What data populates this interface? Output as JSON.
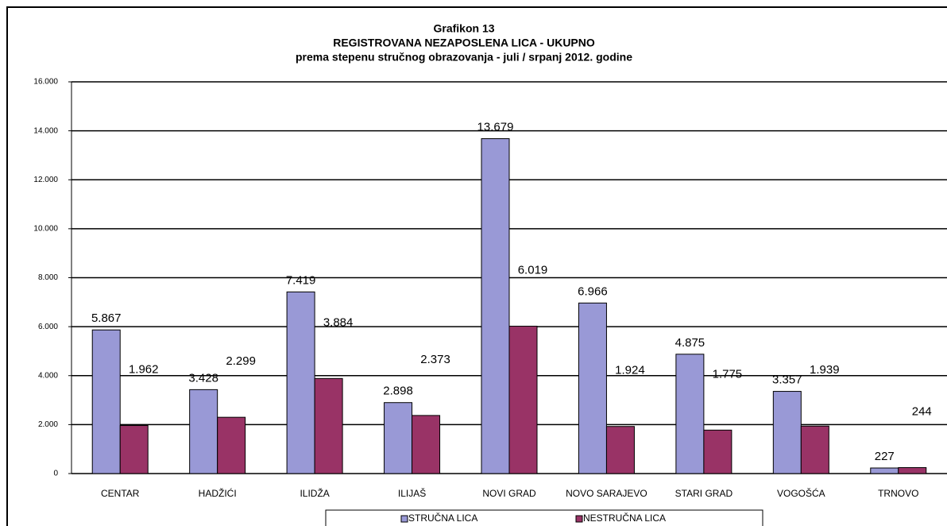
{
  "chart_data": {
    "type": "bar",
    "title": [
      "Grafikon 13",
      "REGISTROVANA NEZAPOSLENA LICA - UKUPNO",
      "prema stepenu stručnog obrazovanja - juli / srpanj  2012. godine"
    ],
    "categories": [
      "CENTAR",
      "HADŽIĆI",
      "ILIDŽA",
      "ILIJAŠ",
      "NOVI GRAD",
      "NOVO SARAJEVO",
      "STARI GRAD",
      "VOGOŠĆA",
      "TRNOVO"
    ],
    "series": [
      {
        "name": "STRUČNA LICA",
        "color": "#9999d6",
        "values": [
          5867,
          3428,
          7419,
          2898,
          13679,
          6966,
          4875,
          3357,
          227
        ],
        "value_labels": [
          "5.867",
          "3.428",
          "7.419",
          "2.898",
          "13.679",
          "6.966",
          "4.875",
          "3.357",
          "227"
        ]
      },
      {
        "name": "NESTRUČNA LICA",
        "color": "#993366",
        "values": [
          1962,
          2299,
          3884,
          2373,
          6019,
          1924,
          1775,
          1939,
          244
        ],
        "value_labels": [
          "1.962",
          "2.299",
          "3.884",
          "2.373",
          "6.019",
          "1.924",
          "1.775",
          "1.939",
          "244"
        ]
      }
    ],
    "ylim": [
      0,
      16000
    ],
    "yticks": [
      {
        "value": 0,
        "label": "0"
      },
      {
        "value": 2000,
        "label": "2.000"
      },
      {
        "value": 4000,
        "label": "4.000"
      },
      {
        "value": 6000,
        "label": "6.000"
      },
      {
        "value": 8000,
        "label": "8.000"
      },
      {
        "value": 10000,
        "label": "10.000"
      },
      {
        "value": 12000,
        "label": "12.000"
      },
      {
        "value": 14000,
        "label": "14.000"
      },
      {
        "value": 16000,
        "label": "16.000"
      }
    ],
    "grid": true,
    "legend": "bottom"
  }
}
